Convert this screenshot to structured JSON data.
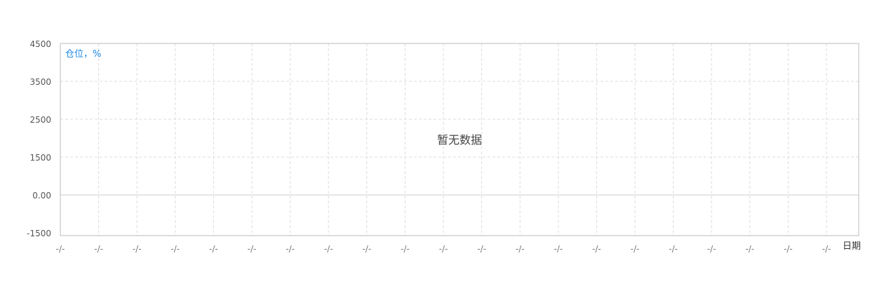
{
  "chart_data": {
    "type": "line",
    "title": "",
    "ylabel": "仓位，%",
    "xlabel": "日期",
    "y_ticks": [
      "4500",
      "3500",
      "2500",
      "1500",
      "0.00",
      "-1500"
    ],
    "ylim": [
      -1500,
      4500
    ],
    "x": [
      "-/-",
      "-/-",
      "-/-",
      "-/-",
      "-/-",
      "-/-",
      "-/-",
      "-/-",
      "-/-",
      "-/-",
      "-/-",
      "-/-",
      "-/-",
      "-/-",
      "-/-",
      "-/-",
      "-/-",
      "-/-",
      "-/-",
      "-/-",
      "-/-"
    ],
    "series": [],
    "grid": true,
    "empty_message": "暂无数据",
    "colors": {
      "unit_label": "#1e88e5",
      "grid": "#dddddd",
      "frame": "#bbbbbb",
      "baseline": "#cccccc"
    }
  }
}
